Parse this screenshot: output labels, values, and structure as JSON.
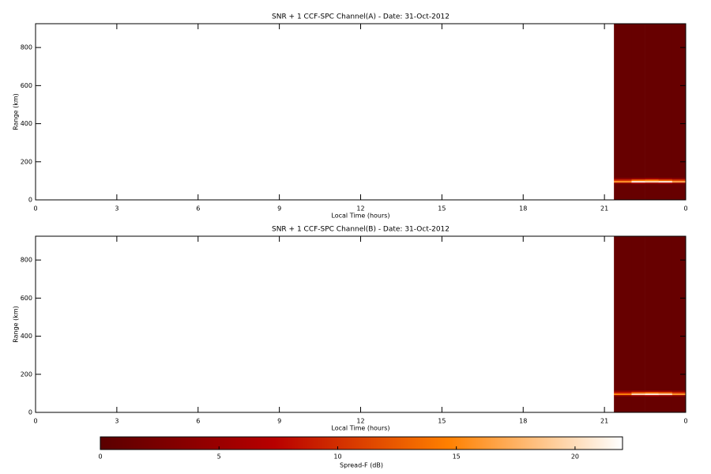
{
  "chart_data": [
    {
      "type": "heatmap",
      "title": "SNR + 1 CCF-SPC Channel(A) - Date: 31-Oct-2012",
      "x_label": "Local Time (hours)",
      "y_label": "Range (km)",
      "xlim": [
        0,
        24
      ],
      "xticks": [
        0,
        3,
        6,
        9,
        12,
        15,
        18,
        21,
        {
          "value": 24,
          "label": "0"
        }
      ],
      "ylim": [
        0,
        925
      ],
      "yticks": [
        0,
        200,
        400,
        600,
        800
      ],
      "x": [
        21.35,
        22,
        22.5,
        23,
        23.5,
        24
      ],
      "y": [
        0,
        85,
        92,
        100,
        108,
        116,
        925
      ],
      "z": [
        [
          1,
          1,
          1,
          1,
          1
        ],
        [
          4,
          6,
          5,
          6,
          4
        ],
        [
          16,
          21,
          20,
          21,
          17
        ],
        [
          10,
          14,
          15,
          13,
          11
        ],
        [
          4,
          5,
          6,
          5,
          4
        ],
        [
          1,
          1,
          1,
          1,
          1
        ]
      ]
    },
    {
      "type": "heatmap",
      "title": "SNR + 1 CCF-SPC Channel(B) - Date: 31-Oct-2012",
      "x_label": "Local Time (hours)",
      "y_label": "Range (km)",
      "xlim": [
        0,
        24
      ],
      "xticks": [
        0,
        3,
        6,
        9,
        12,
        15,
        18,
        21,
        {
          "value": 24,
          "label": "0"
        }
      ],
      "ylim": [
        0,
        925
      ],
      "yticks": [
        0,
        200,
        400,
        600,
        800
      ],
      "x": [
        21.35,
        22,
        22.5,
        23,
        23.5,
        24
      ],
      "y": [
        0,
        85,
        92,
        100,
        108,
        116,
        925
      ],
      "z": [
        [
          1,
          1,
          1,
          1,
          1
        ],
        [
          4,
          5,
          6,
          5,
          4
        ],
        [
          15,
          20,
          21,
          20,
          16
        ],
        [
          9,
          13,
          14,
          13,
          10
        ],
        [
          4,
          5,
          5,
          5,
          4
        ],
        [
          1,
          1,
          1,
          1,
          1
        ]
      ]
    },
    {
      "type": "colorbar",
      "label": "Spread-F (dB)",
      "lim": [
        0,
        22
      ],
      "ticks": [
        0,
        5,
        10,
        15,
        20
      ],
      "colors": [
        "#5a0000",
        "#b80000",
        "#ff8000",
        "#ffffff"
      ]
    }
  ]
}
